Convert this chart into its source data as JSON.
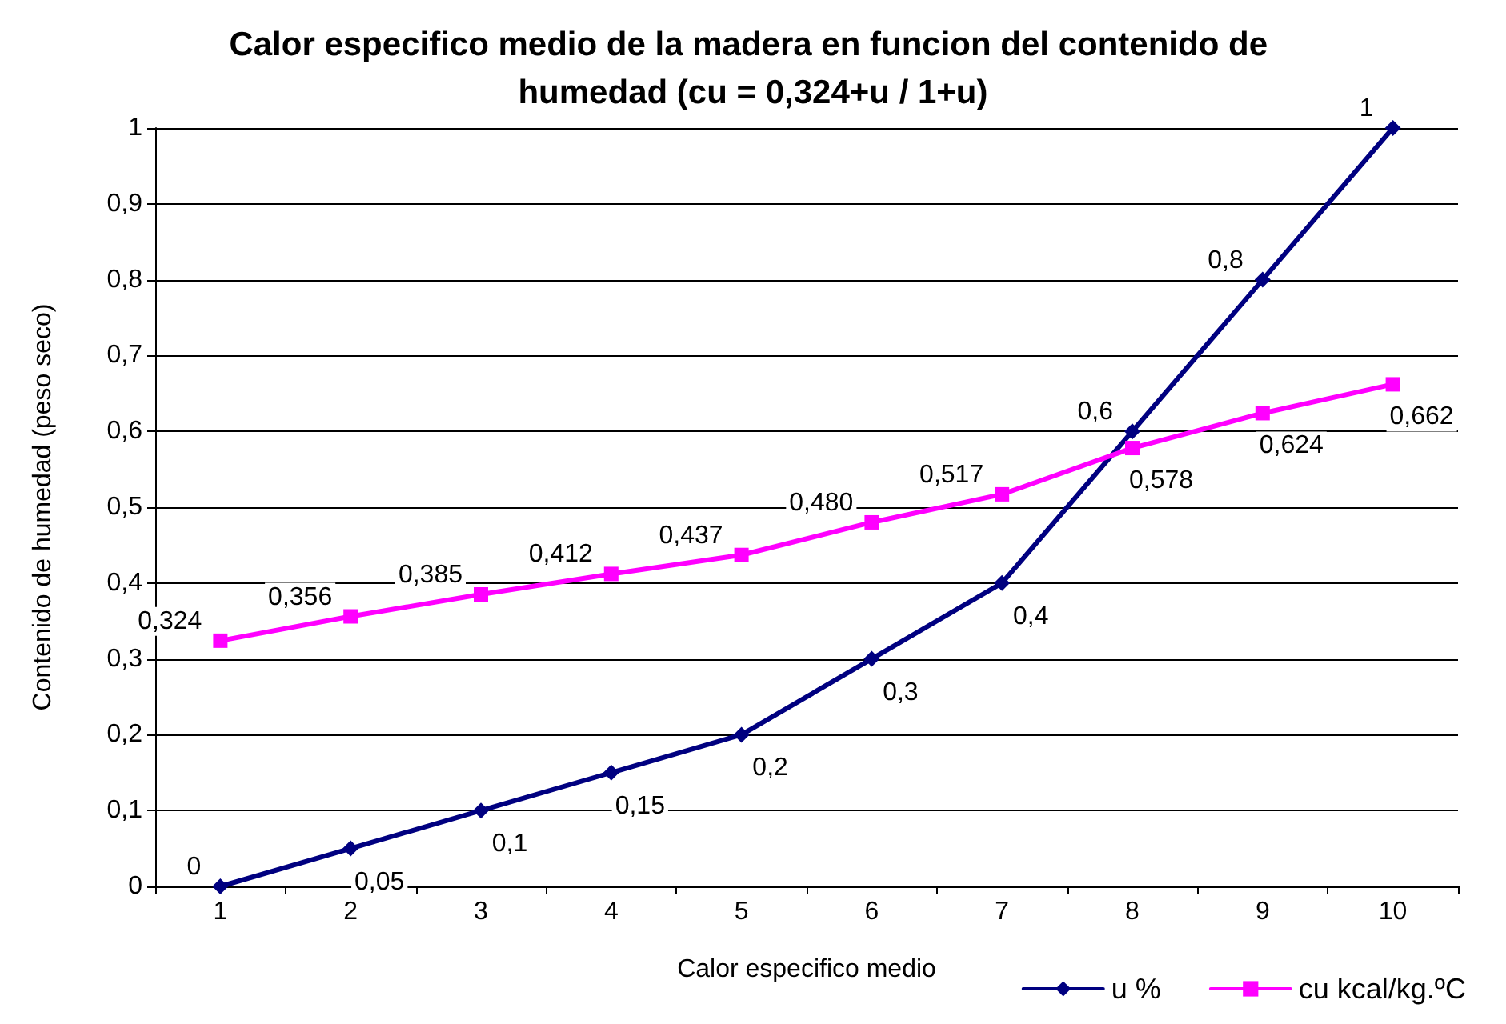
{
  "chart_data": {
    "type": "line",
    "title": "Calor especifico medio de la madera en funcion del contenido de humedad (cu = 0,324+u / 1+u)",
    "xlabel": "Calor especifico medio",
    "ylabel": "Contenido de humedad (peso seco)",
    "categories": [
      "1",
      "2",
      "3",
      "4",
      "5",
      "6",
      "7",
      "8",
      "9",
      "10"
    ],
    "series": [
      {
        "name": "u %",
        "color": "#000080",
        "marker": "diamond",
        "values": [
          0,
          0.05,
          0.1,
          0.15,
          0.2,
          0.3,
          0.4,
          0.6,
          0.8,
          1
        ],
        "value_labels": [
          "0",
          "0,05",
          "0,1",
          "0,15",
          "0,2",
          "0,3",
          "0,4",
          "0,6",
          "0,8",
          "1"
        ]
      },
      {
        "name": "cu kcal/kg.ºC",
        "color": "#ff00ff",
        "marker": "square",
        "values": [
          0.324,
          0.356,
          0.385,
          0.412,
          0.437,
          0.48,
          0.517,
          0.578,
          0.624,
          0.662
        ],
        "value_labels": [
          "0,324",
          "0,356",
          "0,385",
          "0,412",
          "0,437",
          "0,480",
          "0,517",
          "0,578",
          "0,624",
          "0,662"
        ]
      }
    ],
    "ylim": [
      0,
      1
    ],
    "yticks": [
      0,
      {
        "value": 0.1,
        "label": "0,1"
      },
      {
        "value": 0.2,
        "label": "0,2"
      },
      {
        "value": 0.3,
        "label": "0,3"
      },
      {
        "value": 0.4,
        "label": "0,4"
      },
      {
        "value": 0.5,
        "label": "0,5"
      },
      {
        "value": 0.6,
        "label": "0,6"
      },
      {
        "value": 0.7,
        "label": "0,7"
      },
      {
        "value": 0.8,
        "label": "0,8"
      },
      {
        "value": 0.9,
        "label": "0,9"
      },
      1
    ],
    "grid": "y",
    "legend": "bottom right",
    "line_style": "solid"
  }
}
